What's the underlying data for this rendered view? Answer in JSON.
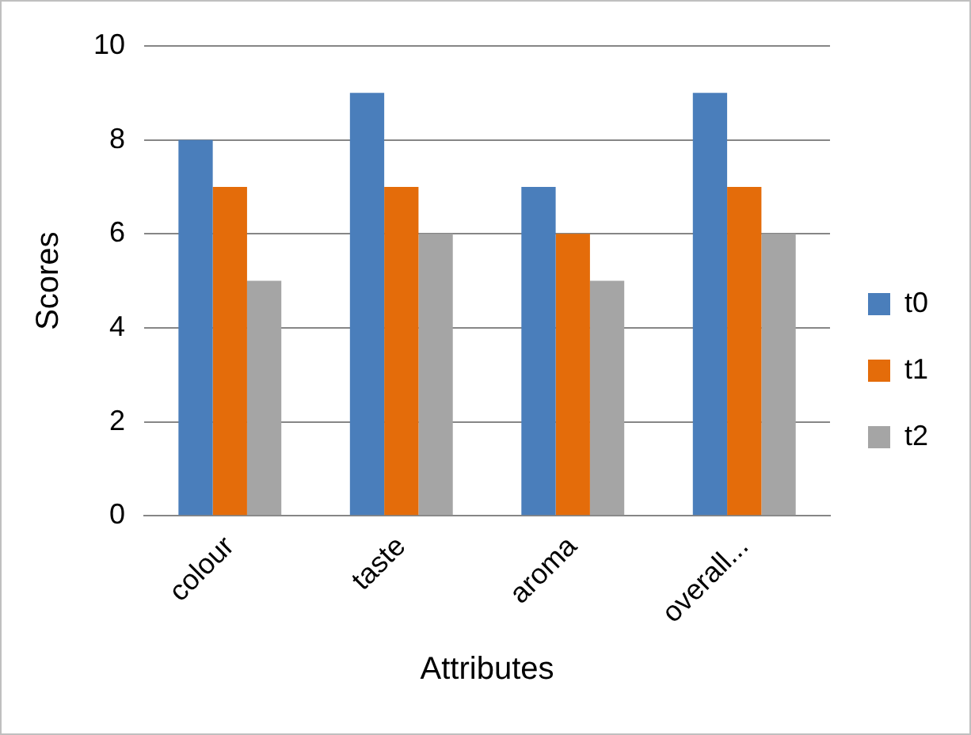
{
  "chart_data": {
    "type": "bar",
    "xlabel": "Attributes",
    "ylabel": "Scores",
    "categories": [
      "colour",
      "taste",
      "aroma",
      "overall..."
    ],
    "series": [
      {
        "name": "t0",
        "color": "#4a7ebb",
        "values": [
          8,
          9,
          7,
          9
        ]
      },
      {
        "name": "t1",
        "color": "#e46c0a",
        "values": [
          7,
          7,
          6,
          7
        ]
      },
      {
        "name": "t2",
        "color": "#a5a5a5",
        "values": [
          5,
          6,
          5,
          6
        ]
      }
    ],
    "ylim": [
      0,
      10
    ],
    "yticks": [
      0,
      2,
      4,
      6,
      8,
      10
    ],
    "grid": "y",
    "legend": "right"
  }
}
